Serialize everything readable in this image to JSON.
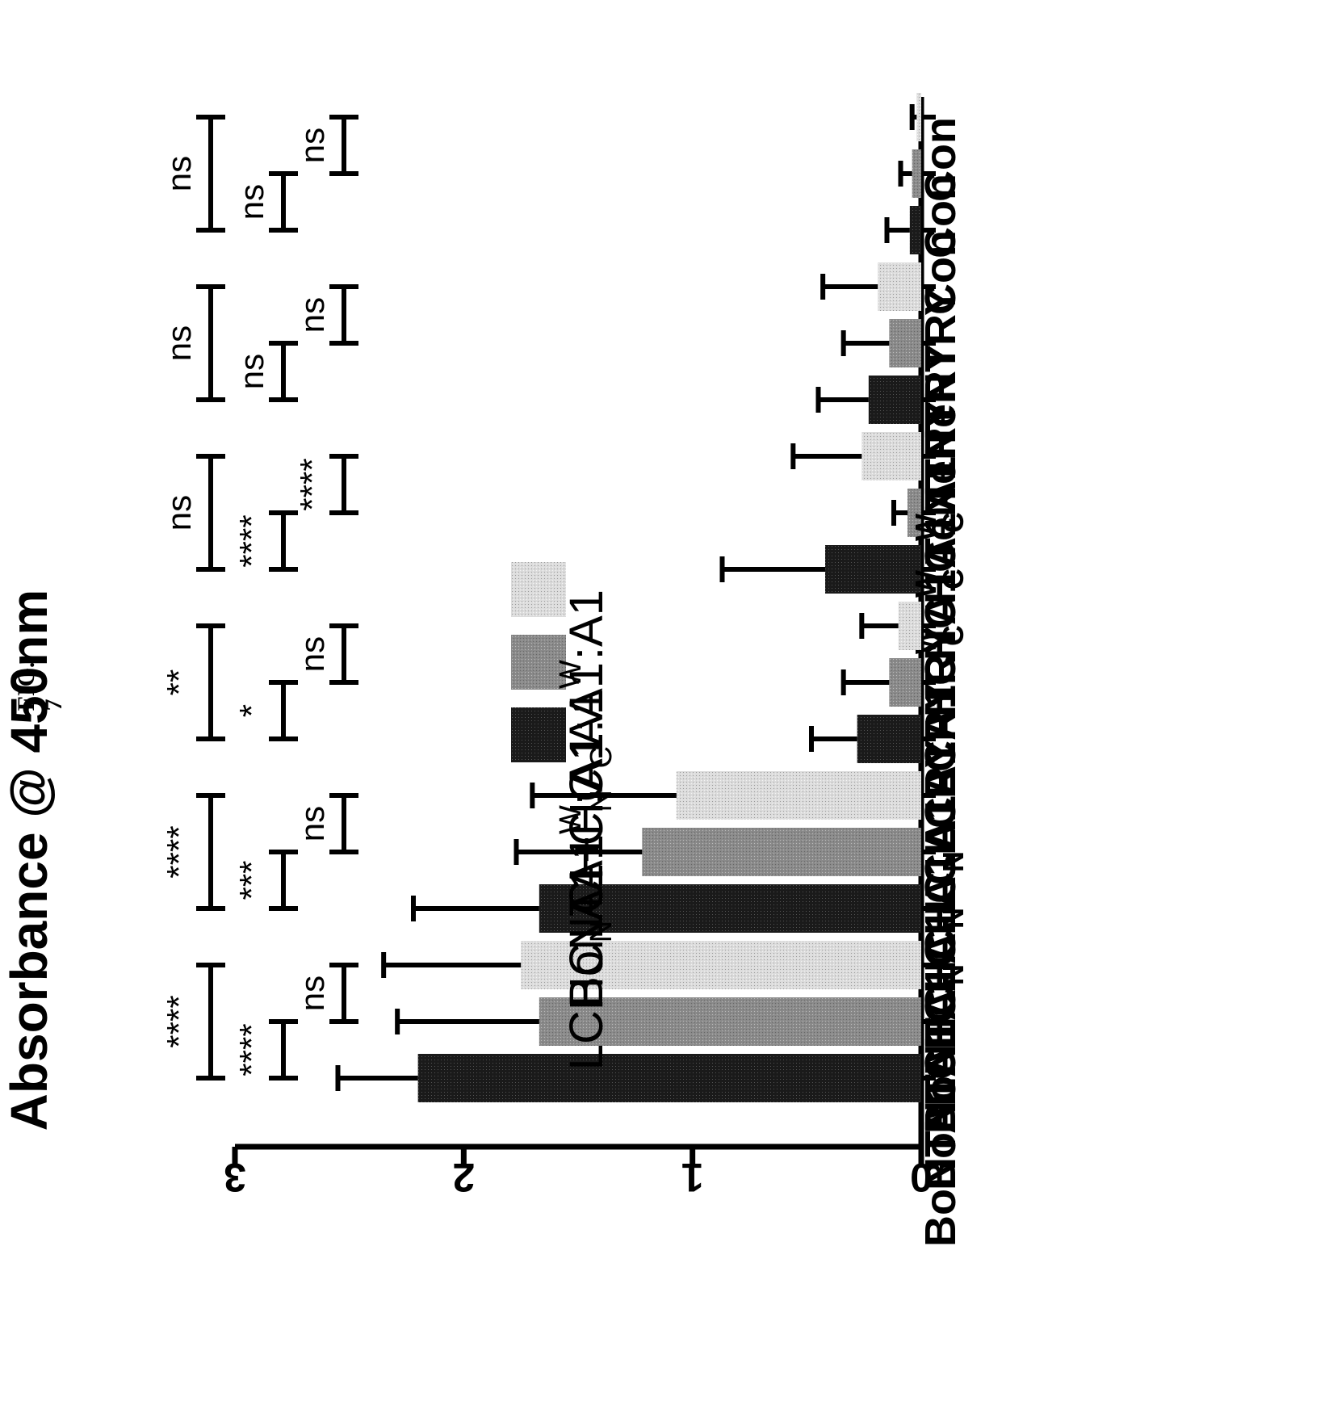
{
  "figure_label": "FIG. 7",
  "colors": {
    "series1": "#1a1a1a",
    "series2": "#8a8a8a",
    "series3": "#d9d9d9"
  },
  "chart_data": {
    "type": "bar",
    "orientation": "rotated (drawn sideways, value axis horizontal)",
    "ylabel": "Absorbance @ 450nm",
    "ylim": [
      0,
      3
    ],
    "yticks": [
      0,
      1,
      2,
      3
    ],
    "grid": false,
    "legend_placement": "middle",
    "group_labels": [
      {
        "base": "BoNTA1",
        "sup": "",
        "sub": ""
      },
      {
        "base": "LCHC",
        "sup": "",
        "sub": "N",
        "tail": "A1"
      },
      {
        "base": "LCA1RY",
        "sup": "",
        "sub": "",
        "tail": ""
      },
      {
        "base": "HC",
        "sup": "W",
        "sub": "C",
        "tail": "A1"
      },
      {
        "base": "TeNTRY",
        "sup": "",
        "sub": "",
        "tail": ""
      },
      {
        "base": "Con",
        "sup": "",
        "sub": "",
        "tail": ""
      }
    ],
    "series": [
      {
        "name": "BoNTA1W:A1",
        "legend_parts": [
          "BoNTA1",
          "W",
          ":A1"
        ],
        "values": [
          2.2,
          1.67,
          0.28,
          0.42,
          0.23,
          0.05
        ],
        "errors": [
          0.35,
          0.55,
          0.2,
          0.45,
          0.22,
          0.1
        ]
      },
      {
        "name": "LCHCNA1:A1",
        "legend_parts": [
          "LCHC",
          "N",
          "A1:A1"
        ],
        "values": [
          1.67,
          1.22,
          0.14,
          0.06,
          0.14,
          0.04
        ],
        "errors": [
          0.62,
          0.55,
          0.2,
          0.06,
          0.2,
          0.05
        ]
      },
      {
        "name": "LCHCNA1+HCCA1W:A1",
        "legend_parts": [
          "LCHC",
          "N",
          "A1+HC",
          "C",
          "A1",
          "W",
          ":A1"
        ],
        "values": [
          1.75,
          1.07,
          0.1,
          0.26,
          0.19,
          0.02
        ],
        "errors": [
          0.6,
          0.63,
          0.16,
          0.3,
          0.24,
          0.02
        ]
      }
    ],
    "significance": [
      {
        "group": 0,
        "s1_s2": "****",
        "s1_s3": "****",
        "s2_s3": "ns"
      },
      {
        "group": 1,
        "s1_s2": "***",
        "s1_s3": "****",
        "s2_s3": "ns"
      },
      {
        "group": 2,
        "s1_s2": "*",
        "s1_s3": "**",
        "s2_s3": "ns"
      },
      {
        "group": 3,
        "s1_s2": "****",
        "s1_s3": "ns",
        "s2_s3": "****"
      },
      {
        "group": 4,
        "s1_s2": "ns",
        "s1_s3": "ns",
        "s2_s3": "ns"
      },
      {
        "group": 5,
        "s1_s2": "ns",
        "s1_s3": "ns",
        "s2_s3": "ns"
      }
    ]
  }
}
